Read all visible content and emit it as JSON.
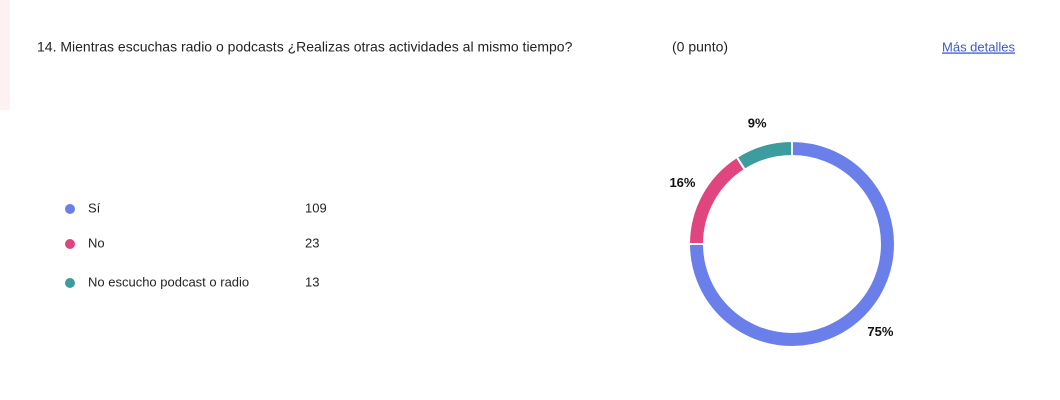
{
  "chart_data": {
    "type": "donut",
    "title": "14. Mientras escuchas radio o podcasts ¿Realizas otras actividades al mismo tiempo?",
    "subtitle": "(0 punto)",
    "link": "Más detalles",
    "categories": [
      "Sí",
      "No",
      "No escucho podcast o radio"
    ],
    "counts": [
      109,
      23,
      13
    ],
    "values": [
      75,
      16,
      9
    ],
    "value_labels": [
      "75%",
      "16%",
      "9%"
    ],
    "colors": [
      "#6a7fe9",
      "#e0457f",
      "#3d9c9e"
    ]
  }
}
